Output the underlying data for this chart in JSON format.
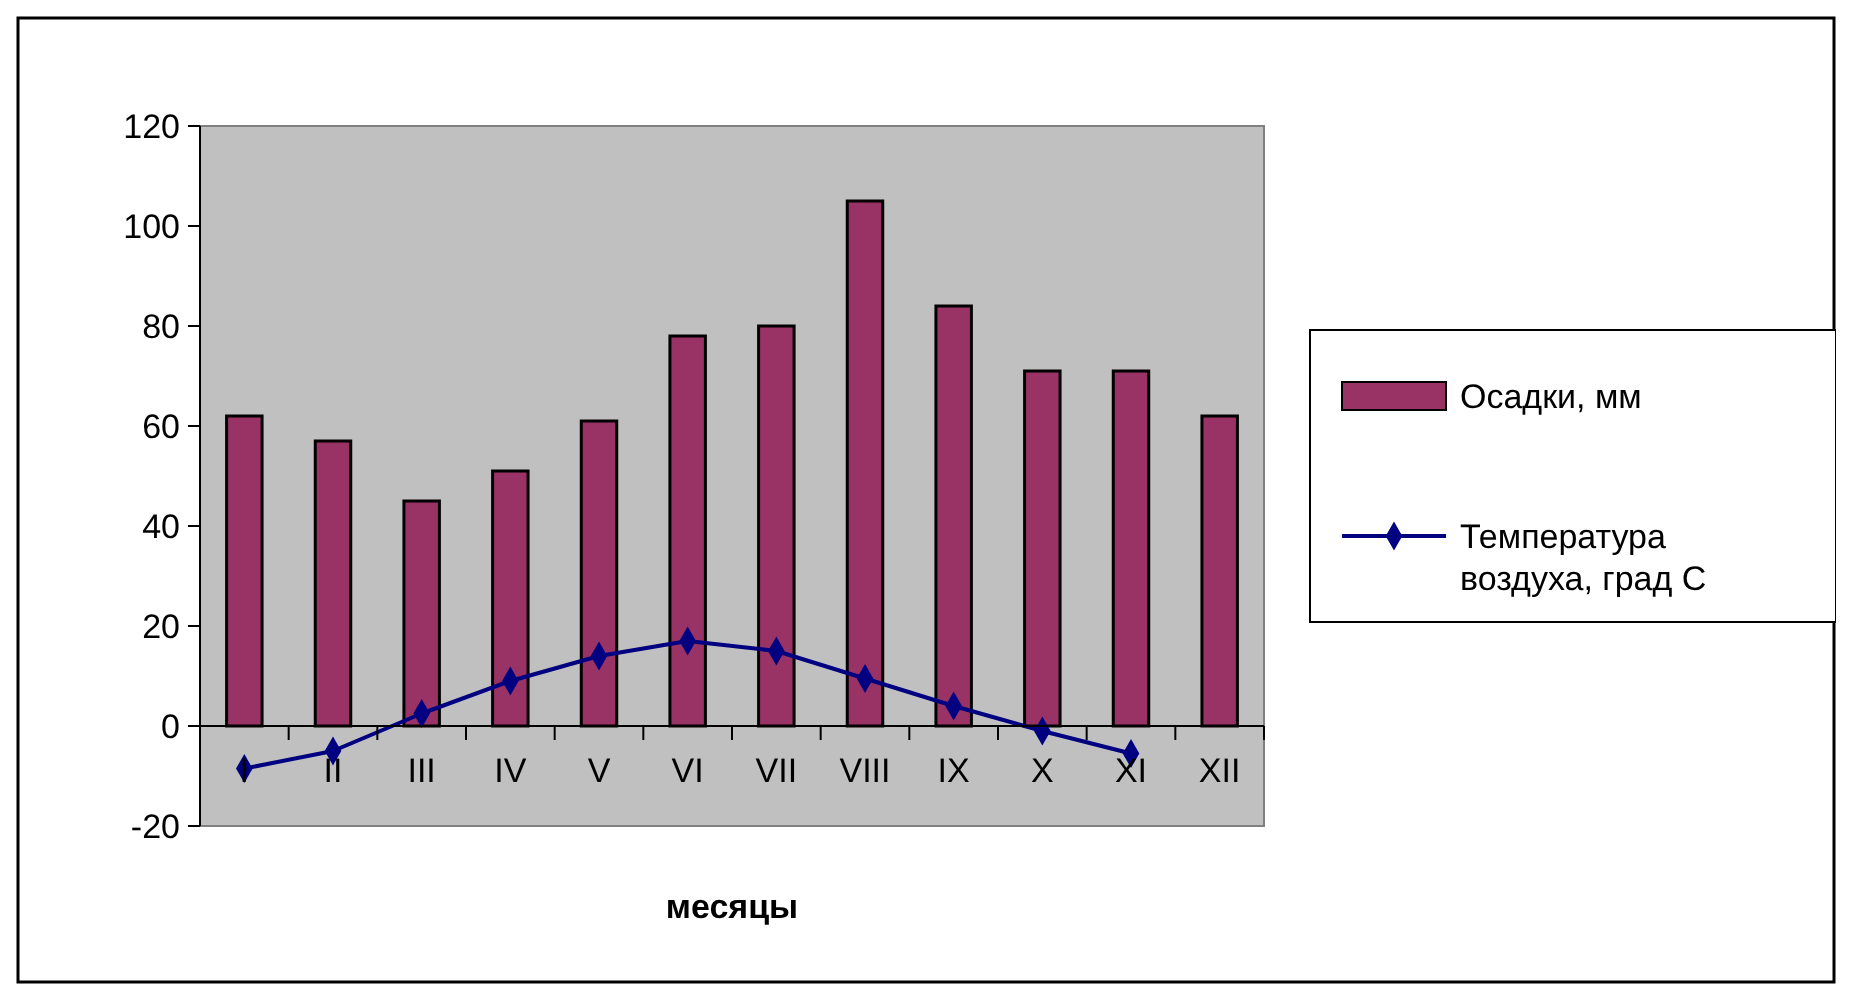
{
  "chart_data": {
    "type": "bar",
    "xlabel": "месяцы",
    "categories": [
      "I",
      "II",
      "III",
      "IV",
      "V",
      "VI",
      "VII",
      "VIII",
      "IX",
      "X",
      "XI",
      "XII"
    ],
    "series": [
      {
        "name": "Осадки, мм",
        "color": "#993366",
        "values": [
          62,
          57,
          45,
          51,
          61,
          78,
          80,
          105,
          84,
          71,
          71,
          62
        ]
      },
      {
        "name": "Температура воздуха, град С",
        "type": "line",
        "color": "#000080",
        "marker": "diamond",
        "values": [
          -8.5,
          -5,
          2.5,
          9,
          14,
          17,
          15,
          9.5,
          4,
          -1,
          -5.5,
          null
        ]
      }
    ],
    "ylim": [
      -20,
      120
    ],
    "yticks": [
      -20,
      0,
      20,
      40,
      60,
      80,
      100,
      120
    ],
    "grid": false,
    "legend": "right"
  }
}
